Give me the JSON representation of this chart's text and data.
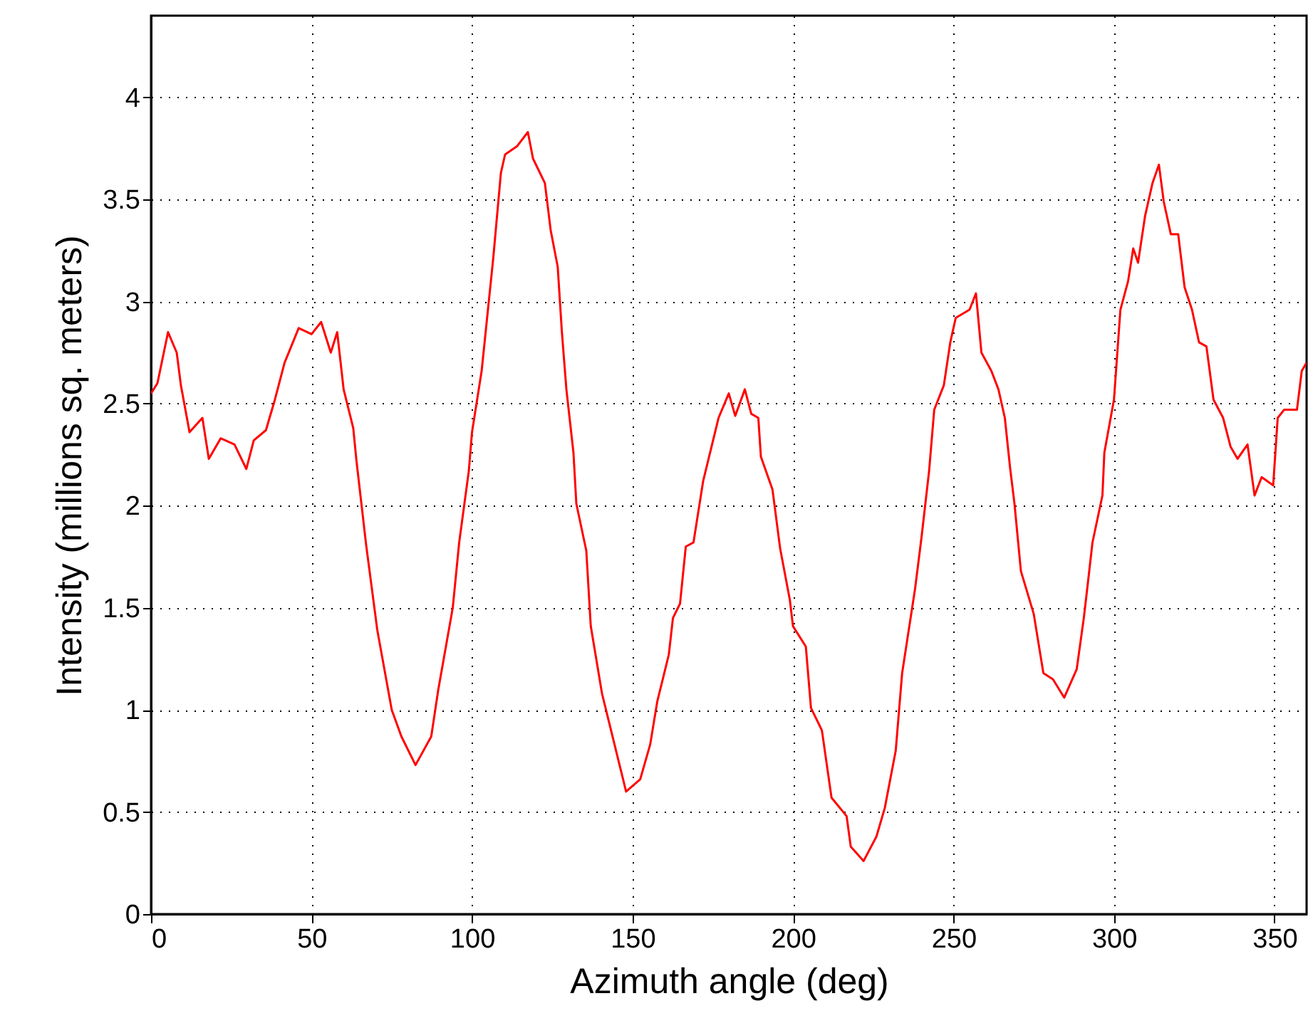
{
  "chart_data": {
    "type": "line",
    "xlabel": "Azimuth angle (deg)",
    "ylabel": "Intensity (millions sq. meters)",
    "x": [
      0,
      2,
      5.3,
      8,
      9.3,
      12,
      16,
      18,
      21.7,
      26,
      29.7,
      32,
      35.8,
      38.6,
      41.6,
      46,
      50,
      53,
      56,
      58,
      60,
      63,
      64,
      67,
      70.5,
      75,
      78,
      82.4,
      87.3,
      89.5,
      94,
      96,
      99,
      100,
      103,
      106.6,
      109,
      110.3,
      114,
      117.4,
      119,
      122.7,
      124.5,
      126.7,
      128,
      129.4,
      131.6,
      132.5,
      135.6,
      137,
      140.5,
      144.4,
      148,
      152.4,
      155.5,
      157.7,
      161.3,
      162.6,
      164.8,
      166.6,
      169,
      172,
      176.8,
      180,
      182,
      185,
      187,
      189.2,
      190,
      193.6,
      196,
      199,
      200,
      204,
      205.6,
      209,
      212,
      216.7,
      218,
      222,
      226,
      228.6,
      232,
      234,
      238,
      240,
      242.4,
      244,
      247,
      249,
      250.7,
      255,
      257,
      258.7,
      261.8,
      264,
      266,
      267.6,
      269,
      271,
      275,
      278,
      281,
      284.5,
      288.4,
      290.6,
      292,
      293.3,
      296.4,
      297,
      300,
      302,
      304.4,
      306,
      307.5,
      309.7,
      312,
      314,
      315.5,
      317.7,
      320,
      322,
      324.3,
      326.5,
      328.8,
      331,
      334,
      336.3,
      338.5,
      341.6,
      343.8,
      346,
      349.6,
      351,
      353,
      357,
      358.5,
      360
    ],
    "series": [
      {
        "color": "#ff0000",
        "values": [
          2.55,
          2.6,
          2.85,
          2.75,
          2.59,
          2.36,
          2.43,
          2.23,
          2.33,
          2.3,
          2.18,
          2.32,
          2.37,
          2.52,
          2.7,
          2.87,
          2.84,
          2.9,
          2.75,
          2.85,
          2.57,
          2.38,
          2.22,
          1.81,
          1.39,
          1.0,
          0.87,
          0.73,
          0.87,
          1.1,
          1.5,
          1.82,
          2.17,
          2.36,
          2.66,
          3.21,
          3.63,
          3.72,
          3.76,
          3.83,
          3.7,
          3.58,
          3.35,
          3.17,
          2.85,
          2.57,
          2.26,
          2.01,
          1.78,
          1.41,
          1.08,
          0.83,
          0.6,
          0.66,
          0.83,
          1.04,
          1.27,
          1.45,
          1.52,
          1.8,
          1.82,
          2.12,
          2.43,
          2.55,
          2.44,
          2.57,
          2.45,
          2.43,
          2.24,
          2.08,
          1.79,
          1.54,
          1.41,
          1.31,
          1.01,
          0.9,
          0.57,
          0.48,
          0.33,
          0.26,
          0.38,
          0.52,
          0.8,
          1.18,
          1.59,
          1.84,
          2.17,
          2.47,
          2.59,
          2.8,
          2.92,
          2.96,
          3.04,
          2.75,
          2.66,
          2.57,
          2.43,
          2.19,
          2.01,
          1.68,
          1.47,
          1.18,
          1.15,
          1.06,
          1.2,
          1.45,
          1.64,
          1.82,
          2.05,
          2.26,
          2.52,
          2.96,
          3.1,
          3.26,
          3.19,
          3.42,
          3.58,
          3.67,
          3.49,
          3.33,
          3.33,
          3.07,
          2.96,
          2.8,
          2.78,
          2.52,
          2.43,
          2.29,
          2.23,
          2.3,
          2.05,
          2.14,
          2.1,
          2.43,
          2.47,
          2.47,
          2.66,
          2.7
        ]
      }
    ],
    "xlim": [
      0,
      360
    ],
    "xticks": [
      0,
      50,
      100,
      150,
      200,
      250,
      300,
      350
    ],
    "ylim": [
      0,
      4.4
    ],
    "yticks": [
      0,
      0.5,
      1,
      1.5,
      2,
      2.5,
      3,
      3.5,
      4
    ],
    "grid": true,
    "line_style": "solid"
  }
}
